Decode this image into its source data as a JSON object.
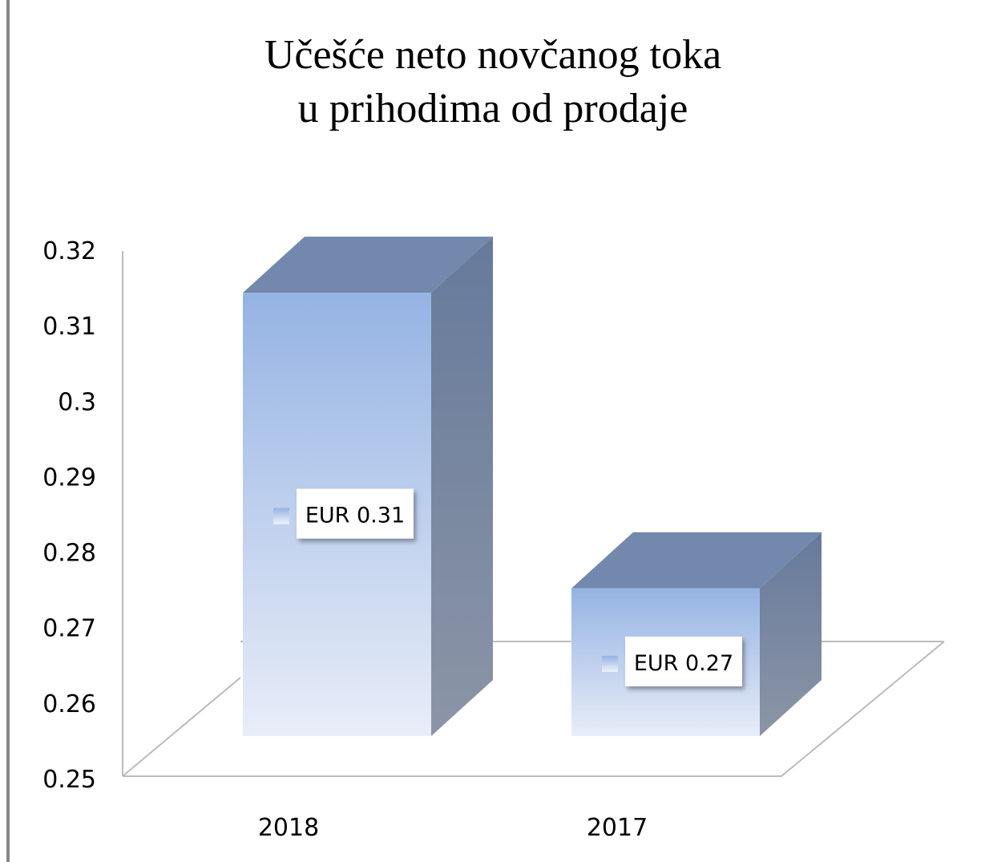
{
  "chart_data": {
    "type": "bar3d",
    "title": [
      "Učešće neto novčanog toka",
      "u prihodima od prodaje"
    ],
    "categories": [
      "2018",
      "2017"
    ],
    "values": [
      0.31,
      0.27
    ],
    "value_labels": [
      "EUR 0.31",
      "EUR 0.27"
    ],
    "color": "#95b3e3",
    "ylim": [
      0.25,
      0.32
    ],
    "yticks": [
      0.25,
      0.26,
      0.27,
      0.28,
      0.29,
      0.3,
      0.31,
      0.32
    ]
  }
}
